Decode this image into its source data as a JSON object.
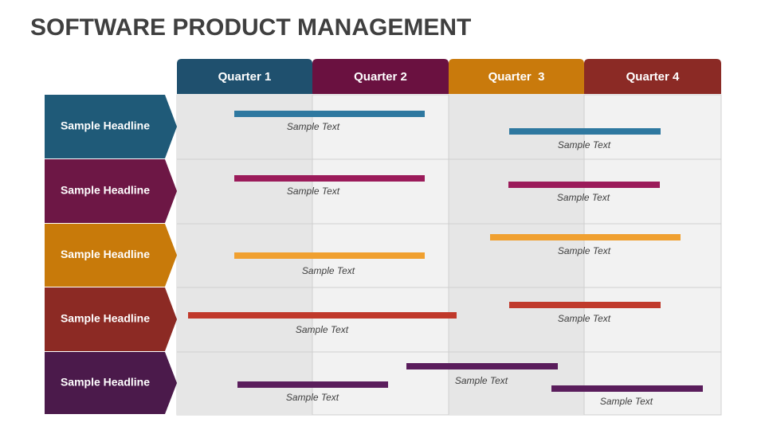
{
  "title": "SOFTWARE PRODUCT MANAGEMENT",
  "quarters": [
    "Quarter 1",
    "Quarter 2",
    "Quarter  3",
    "Quarter 4"
  ],
  "rows": [
    {
      "headline": "Sample Headline",
      "items": [
        "Sample Text",
        "Sample Text"
      ]
    },
    {
      "headline": "Sample Headline",
      "items": [
        "Sample Text",
        "Sample Text"
      ]
    },
    {
      "headline": "Sample Headline",
      "items": [
        "Sample Text",
        "Sample Text"
      ]
    },
    {
      "headline": "Sample Headline",
      "items": [
        "Sample Text",
        "Sample Text"
      ]
    },
    {
      "headline": "Sample Headline",
      "items": [
        "Sample Text",
        "Sample Text",
        "Sample Text"
      ]
    }
  ]
}
